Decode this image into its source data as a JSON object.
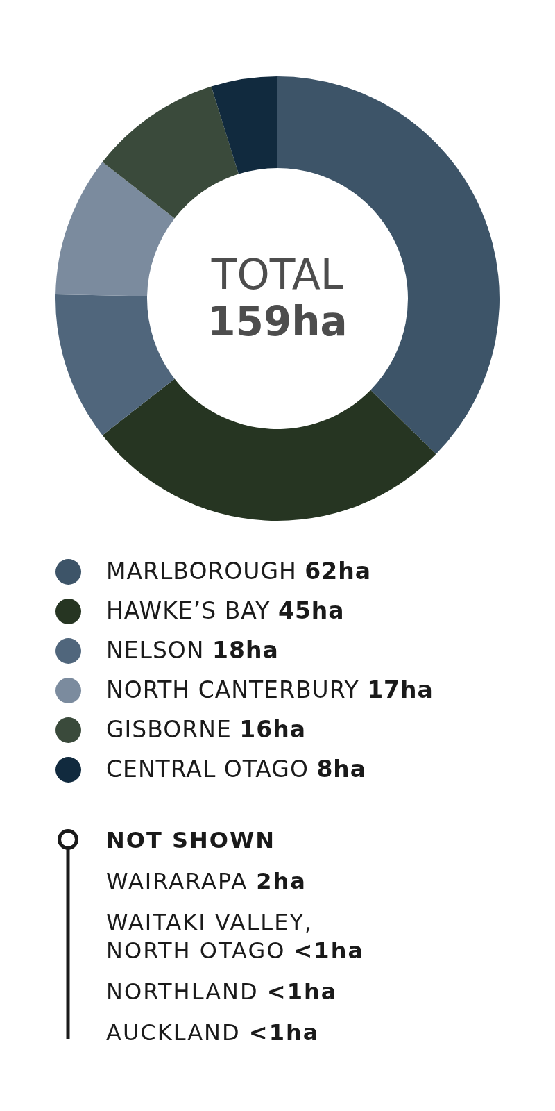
{
  "chart_data": {
    "type": "donut",
    "categories": [
      "MARLBOROUGH",
      "HAWKE’S BAY",
      "NELSON",
      "NORTH CANTERBURY",
      "GISBORNE",
      "CENTRAL OTAGO"
    ],
    "values": [
      62,
      45,
      18,
      17,
      16,
      8
    ],
    "value_labels": [
      "62ha",
      "45ha",
      "18ha",
      "17ha",
      "16ha",
      "8ha"
    ],
    "colors": [
      "#3d5468",
      "#263522",
      "#50667c",
      "#7b8b9e",
      "#3a4a3b",
      "#112a3e"
    ],
    "legend": "bottom",
    "annotations": [
      "TOTAL 159ha",
      "NOT SHOWN",
      "WAIRARAPA 2ha",
      "WAITAKI VALLEY, NORTH OTAGO <1ha",
      "NORTHLAND <1ha",
      "AUCKLAND <1ha"
    ]
  }
}
